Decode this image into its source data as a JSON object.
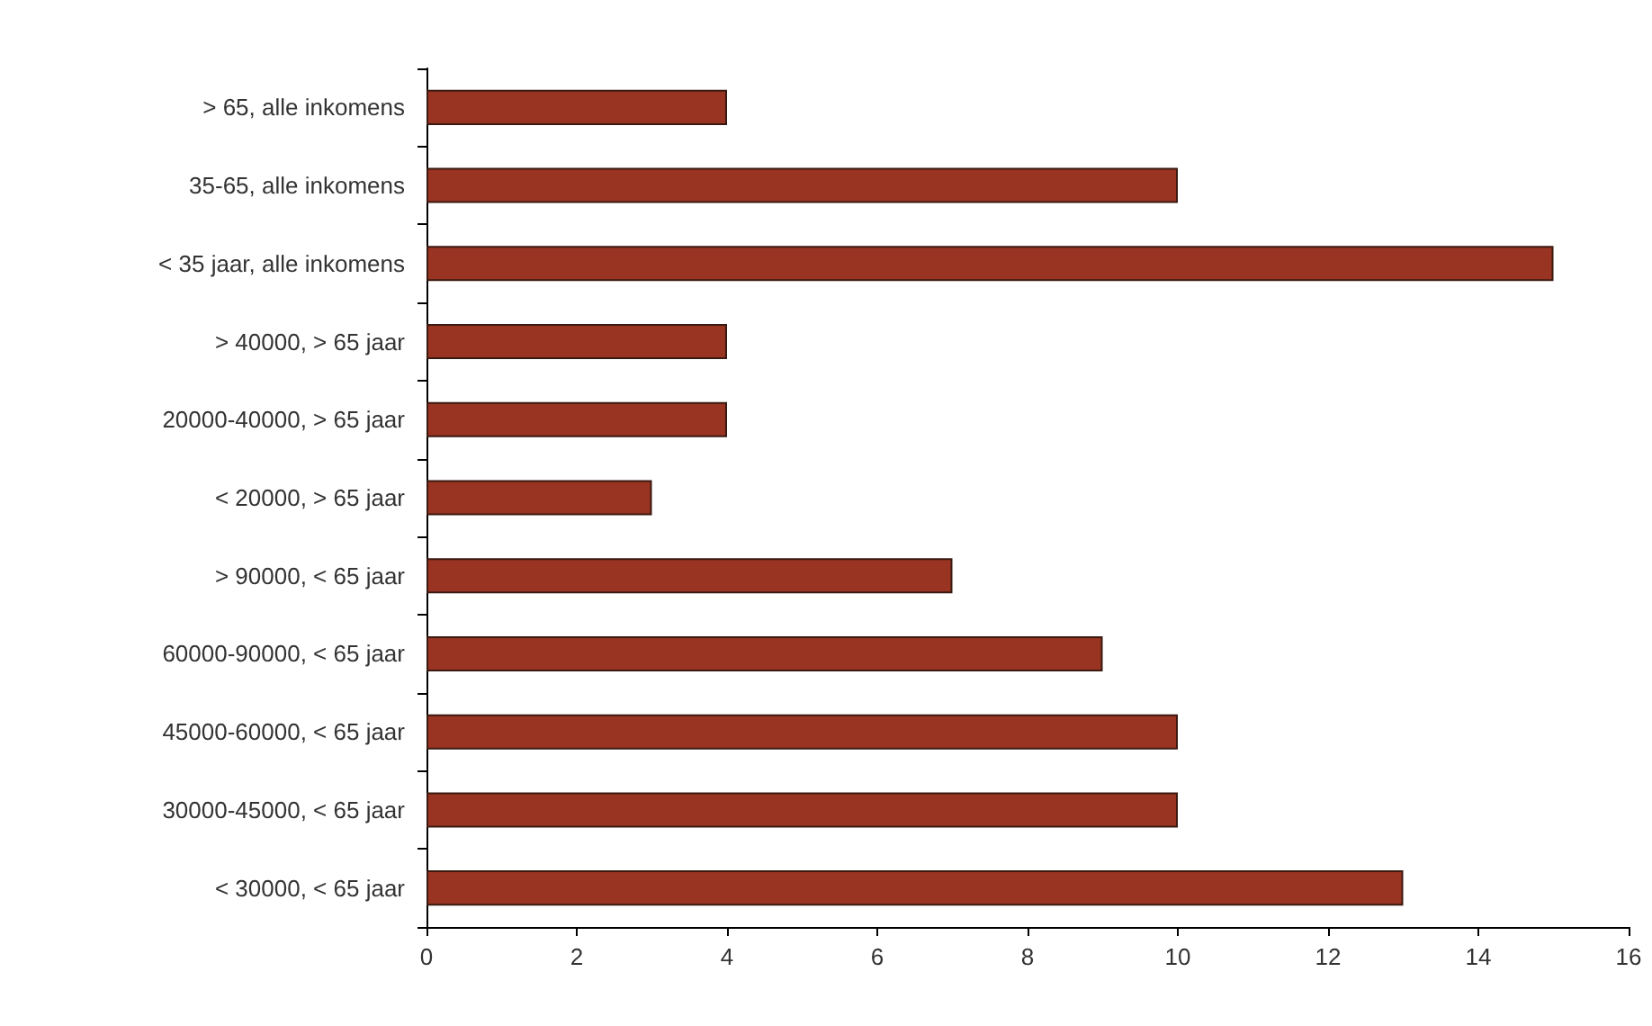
{
  "chart_data": {
    "type": "bar",
    "orientation": "horizontal",
    "categories": [
      "> 65, alle inkomens",
      "35-65, alle inkomens",
      "< 35 jaar, alle inkomens",
      "> 40000, > 65 jaar",
      "20000-40000, > 65 jaar",
      "< 20000, > 65 jaar",
      "> 90000, < 65 jaar",
      "60000-90000, < 65 jaar",
      "45000-60000, < 65 jaar",
      "30000-45000, < 65 jaar",
      "< 30000, < 65 jaar"
    ],
    "values": [
      4,
      10,
      15,
      4,
      4,
      3,
      7,
      9,
      10,
      10,
      13
    ],
    "color": "#993322",
    "xlim": [
      0,
      16
    ],
    "xticks": [
      0,
      2,
      4,
      6,
      8,
      10,
      12,
      14,
      16
    ],
    "grid": false
  }
}
